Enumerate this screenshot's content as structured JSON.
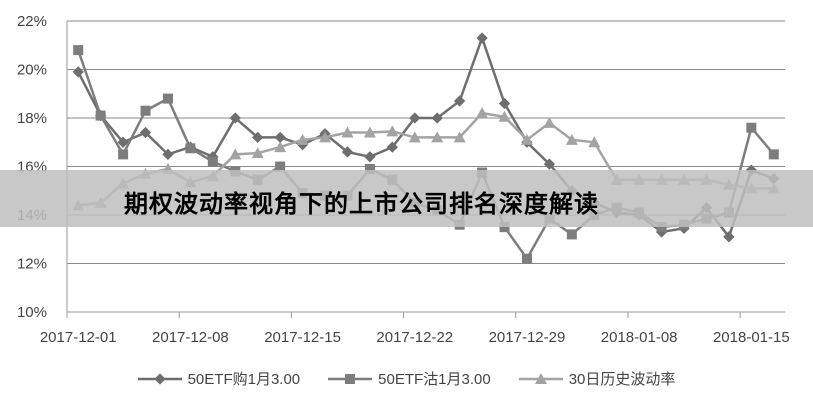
{
  "title": "期权波动率视角下的上市公司排名深度解读",
  "chart_data": {
    "type": "line",
    "title": "",
    "xlabel": "",
    "ylabel": "",
    "ylim": [
      10,
      22
    ],
    "yticks": [
      "10%",
      "12%",
      "14%",
      "16%",
      "18%",
      "20%",
      "22%"
    ],
    "grid": true,
    "legend_position": "bottom",
    "x": [
      "2017-12-01",
      "2017-12-04",
      "2017-12-05",
      "2017-12-06",
      "2017-12-07",
      "2017-12-08",
      "2017-12-11",
      "2017-12-12",
      "2017-12-13",
      "2017-12-14",
      "2017-12-15",
      "2017-12-18",
      "2017-12-19",
      "2017-12-20",
      "2017-12-21",
      "2017-12-22",
      "2017-12-25",
      "2017-12-26",
      "2017-12-27",
      "2017-12-28",
      "2017-12-29",
      "2018-01-02",
      "2018-01-03",
      "2018-01-04",
      "2018-01-05",
      "2018-01-08",
      "2018-01-09",
      "2018-01-10",
      "2018-01-11",
      "2018-01-12",
      "2018-01-15",
      "2018-01-16"
    ],
    "xtick_labels": [
      "2017-12-01",
      "2017-12-08",
      "2017-12-15",
      "2017-12-22",
      "2017-12-29",
      "2018-01-08",
      "2018-01-15"
    ],
    "series": [
      {
        "name": "50ETF购1月3.00",
        "marker": "diamond",
        "color": "#6e6e6e",
        "values": [
          19.9,
          18.1,
          17.0,
          17.4,
          16.5,
          16.8,
          16.4,
          18.0,
          17.2,
          17.2,
          16.9,
          17.35,
          16.6,
          16.4,
          16.8,
          18.0,
          18.0,
          18.7,
          21.3,
          18.6,
          17.0,
          16.1,
          15.0,
          14.5,
          14.1,
          14.0,
          13.3,
          13.45,
          14.3,
          13.1,
          15.85,
          15.5
        ]
      },
      {
        "name": "50ETF沽1月3.00",
        "marker": "square",
        "color": "#7d7d7d",
        "values": [
          20.8,
          18.1,
          16.5,
          18.3,
          18.8,
          16.75,
          16.2,
          15.8,
          15.45,
          16.0,
          14.9,
          14.8,
          14.8,
          15.9,
          15.45,
          14.5,
          14.2,
          13.6,
          15.75,
          13.5,
          12.2,
          13.85,
          13.2,
          14.0,
          14.3,
          14.1,
          13.5,
          13.6,
          13.85,
          14.1,
          17.6,
          16.5
        ]
      },
      {
        "name": "30日历史波动率",
        "marker": "triangle",
        "color": "#a3a3a3",
        "values": [
          14.4,
          14.5,
          15.3,
          15.7,
          15.9,
          15.35,
          15.6,
          16.5,
          16.55,
          16.8,
          17.1,
          17.2,
          17.4,
          17.4,
          17.45,
          17.2,
          17.2,
          17.2,
          18.2,
          18.05,
          17.1,
          17.8,
          17.1,
          17.0,
          15.45,
          15.45,
          15.45,
          15.45,
          15.45,
          15.25,
          15.1,
          15.1
        ]
      }
    ]
  }
}
